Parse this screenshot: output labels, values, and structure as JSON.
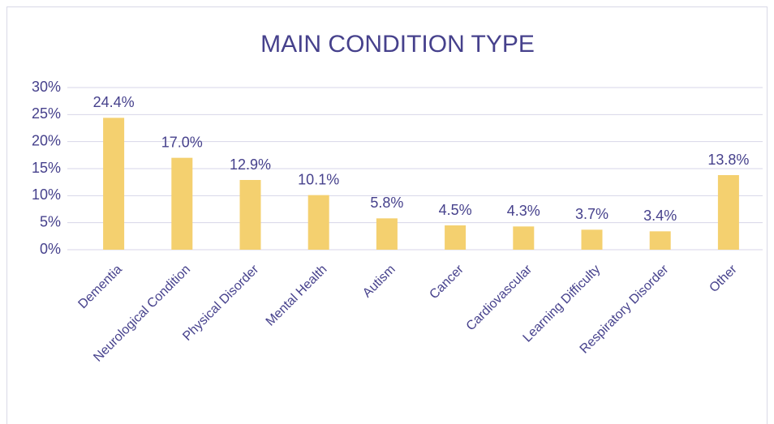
{
  "chart_data": {
    "type": "bar",
    "title": "MAIN CONDITION TYPE",
    "categories": [
      "Dementia",
      "Neurological Condition",
      "Physical Disorder",
      "Mental Health",
      "Autism",
      "Cancer",
      "Cardiovascular",
      "Learning Difficulty",
      "Respiratory Disorder",
      "Other"
    ],
    "values": [
      24.4,
      17.0,
      12.9,
      10.1,
      5.8,
      4.5,
      4.3,
      3.7,
      3.4,
      13.8
    ],
    "value_labels": [
      "24.4%",
      "17.0%",
      "12.9%",
      "10.1%",
      "5.8%",
      "4.5%",
      "4.3%",
      "3.7%",
      "3.4%",
      "13.8%"
    ],
    "color": "#f4d06f",
    "ylim": [
      0,
      30
    ],
    "yticks": [
      {
        "value": 0,
        "label": "0%"
      },
      {
        "value": 5,
        "label": "5%"
      },
      {
        "value": 10,
        "label": "10%"
      },
      {
        "value": 15,
        "label": "15%"
      },
      {
        "value": 20,
        "label": "20%"
      },
      {
        "value": 25,
        "label": "25%"
      },
      {
        "value": 30,
        "label": "30%"
      }
    ],
    "grid": true
  }
}
